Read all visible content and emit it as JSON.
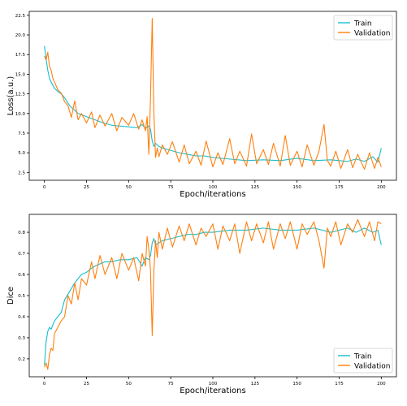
{
  "chart_data": [
    {
      "type": "line",
      "xlabel": "Epoch/iterations",
      "ylabel": "Loss(a.u.)",
      "xlim": [
        -9,
        209
      ],
      "ylim": [
        1.5,
        23.0
      ],
      "xticks": [
        0,
        25,
        50,
        75,
        100,
        125,
        150,
        175,
        200
      ],
      "yticks": [
        2.5,
        5.0,
        7.5,
        10.0,
        12.5,
        15.0,
        17.5,
        20.0,
        22.5
      ],
      "ytick_labels": [
        "2.5",
        "5.0",
        "7.5",
        "10.0",
        "12.5",
        "15.0",
        "17.5",
        "20.0",
        "22.5"
      ],
      "legend": "top-right",
      "grid": false,
      "series": [
        {
          "name": "Train",
          "color": "#17becf",
          "x": [
            0,
            1,
            2,
            3,
            4,
            5,
            6,
            8,
            10,
            12,
            15,
            20,
            25,
            30,
            35,
            40,
            45,
            50,
            55,
            58,
            60,
            62,
            63,
            64,
            65,
            66,
            68,
            70,
            75,
            80,
            85,
            90,
            95,
            100,
            110,
            120,
            130,
            140,
            150,
            160,
            170,
            180,
            185,
            190,
            195,
            198,
            200
          ],
          "y": [
            18.6,
            17.0,
            15.5,
            14.5,
            14.0,
            13.6,
            13.2,
            12.8,
            12.5,
            12.0,
            11.0,
            10.0,
            9.6,
            9.2,
            8.8,
            8.5,
            8.4,
            8.3,
            8.2,
            8.6,
            8.1,
            8.4,
            8.0,
            6.5,
            5.8,
            6.2,
            5.8,
            5.6,
            5.3,
            5.0,
            4.8,
            4.6,
            4.6,
            4.4,
            4.2,
            4.0,
            4.1,
            4.0,
            4.3,
            4.0,
            4.1,
            3.9,
            4.2,
            3.9,
            4.5,
            3.8,
            5.6
          ]
        },
        {
          "name": "Validation",
          "color": "#ff7f0e",
          "x": [
            0,
            1,
            2,
            3,
            4,
            5,
            6,
            8,
            10,
            12,
            14,
            16,
            18,
            20,
            22,
            25,
            28,
            30,
            33,
            36,
            40,
            43,
            46,
            50,
            53,
            56,
            58,
            60,
            61,
            62,
            63,
            64,
            65,
            66,
            67,
            68,
            70,
            73,
            76,
            80,
            83,
            86,
            90,
            93,
            96,
            100,
            103,
            106,
            110,
            113,
            116,
            120,
            123,
            126,
            130,
            133,
            136,
            140,
            143,
            146,
            150,
            153,
            156,
            160,
            163,
            166,
            168,
            170,
            173,
            176,
            180,
            183,
            186,
            190,
            193,
            196,
            198,
            200
          ],
          "y": [
            17.3,
            16.8,
            17.8,
            16.0,
            15.5,
            14.5,
            14.0,
            13.0,
            12.6,
            11.5,
            11.0,
            9.5,
            11.6,
            9.2,
            10.0,
            8.8,
            10.2,
            8.2,
            9.8,
            8.4,
            10.0,
            7.8,
            9.5,
            8.5,
            10.0,
            8.0,
            9.2,
            7.8,
            9.6,
            4.8,
            12.0,
            22.1,
            10.0,
            4.4,
            5.6,
            4.5,
            6.0,
            4.8,
            6.4,
            3.8,
            6.0,
            3.6,
            5.2,
            3.4,
            6.5,
            3.2,
            5.0,
            3.5,
            6.8,
            3.6,
            5.2,
            3.3,
            7.4,
            3.6,
            5.4,
            3.5,
            6.2,
            3.3,
            7.2,
            3.4,
            5.2,
            3.2,
            6.0,
            3.4,
            5.2,
            8.6,
            4.0,
            3.3,
            5.2,
            3.0,
            5.4,
            3.1,
            4.8,
            2.9,
            5.0,
            3.0,
            4.4,
            3.2
          ]
        }
      ]
    },
    {
      "type": "line",
      "xlabel": "Epoch/iterations",
      "ylabel": "Dice",
      "xlim": [
        -9,
        209
      ],
      "ylim": [
        0.115,
        0.885
      ],
      "xticks": [
        0,
        25,
        50,
        75,
        100,
        125,
        150,
        175,
        200
      ],
      "yticks": [
        0.2,
        0.3,
        0.4,
        0.5,
        0.6,
        0.7,
        0.8
      ],
      "ytick_labels": [
        "0.2",
        "0.3",
        "0.4",
        "0.5",
        "0.6",
        "0.7",
        "0.8"
      ],
      "legend": "bottom-right",
      "grid": false,
      "series": [
        {
          "name": "Train",
          "color": "#17becf",
          "x": [
            0,
            1,
            2,
            3,
            4,
            5,
            6,
            8,
            10,
            12,
            15,
            18,
            20,
            22,
            25,
            28,
            30,
            33,
            36,
            40,
            45,
            50,
            55,
            58,
            60,
            62,
            63,
            64,
            65,
            66,
            68,
            70,
            75,
            80,
            85,
            90,
            95,
            100,
            110,
            120,
            130,
            140,
            150,
            160,
            170,
            180,
            185,
            190,
            195,
            198,
            200
          ],
          "y": [
            0.17,
            0.28,
            0.33,
            0.35,
            0.34,
            0.36,
            0.38,
            0.4,
            0.42,
            0.48,
            0.52,
            0.56,
            0.58,
            0.6,
            0.61,
            0.63,
            0.64,
            0.65,
            0.66,
            0.66,
            0.67,
            0.67,
            0.68,
            0.64,
            0.68,
            0.67,
            0.69,
            0.75,
            0.77,
            0.74,
            0.75,
            0.76,
            0.77,
            0.78,
            0.79,
            0.79,
            0.8,
            0.8,
            0.81,
            0.81,
            0.82,
            0.81,
            0.81,
            0.82,
            0.8,
            0.82,
            0.8,
            0.82,
            0.8,
            0.81,
            0.74
          ]
        },
        {
          "name": "Validation",
          "color": "#ff7f0e",
          "x": [
            0,
            1,
            2,
            3,
            4,
            5,
            6,
            8,
            10,
            12,
            14,
            16,
            18,
            20,
            22,
            25,
            28,
            30,
            33,
            36,
            40,
            43,
            46,
            50,
            53,
            56,
            58,
            60,
            61,
            62,
            63,
            64,
            65,
            66,
            67,
            68,
            70,
            73,
            76,
            80,
            83,
            86,
            90,
            93,
            96,
            100,
            103,
            106,
            110,
            113,
            116,
            120,
            123,
            126,
            130,
            133,
            136,
            140,
            143,
            146,
            150,
            153,
            156,
            160,
            163,
            166,
            168,
            170,
            173,
            176,
            180,
            183,
            186,
            190,
            193,
            196,
            198,
            200
          ],
          "y": [
            0.16,
            0.18,
            0.15,
            0.22,
            0.25,
            0.24,
            0.32,
            0.35,
            0.38,
            0.4,
            0.5,
            0.46,
            0.56,
            0.48,
            0.58,
            0.55,
            0.66,
            0.58,
            0.69,
            0.6,
            0.68,
            0.58,
            0.7,
            0.62,
            0.68,
            0.57,
            0.7,
            0.64,
            0.78,
            0.72,
            0.62,
            0.31,
            0.62,
            0.76,
            0.68,
            0.8,
            0.72,
            0.82,
            0.73,
            0.83,
            0.76,
            0.84,
            0.74,
            0.82,
            0.78,
            0.84,
            0.72,
            0.83,
            0.76,
            0.84,
            0.7,
            0.85,
            0.76,
            0.84,
            0.75,
            0.85,
            0.72,
            0.84,
            0.77,
            0.85,
            0.72,
            0.84,
            0.79,
            0.85,
            0.76,
            0.63,
            0.82,
            0.78,
            0.85,
            0.74,
            0.84,
            0.8,
            0.86,
            0.78,
            0.85,
            0.76,
            0.85,
            0.84
          ]
        }
      ]
    }
  ]
}
